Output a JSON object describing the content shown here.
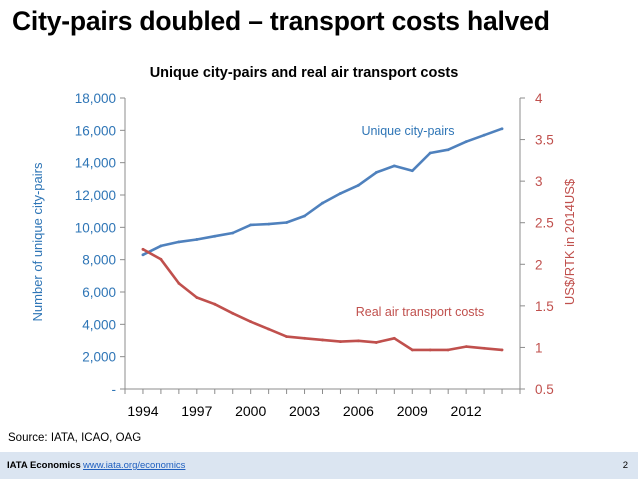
{
  "slide": {
    "title": "City-pairs doubled – transport costs halved",
    "source": "Source: IATA, ICAO, OAG"
  },
  "footer": {
    "org": "IATA Economics",
    "link": "www.iata.org/economics",
    "page": "2"
  },
  "colors": {
    "primary": "#2e75b6",
    "secondary": "#c0504d"
  },
  "chart_data": {
    "type": "line",
    "title": "Unique city-pairs and real air transport costs",
    "xlabel": "",
    "x_ticks": [
      "1994",
      "1997",
      "2000",
      "2003",
      "2006",
      "2009",
      "2012"
    ],
    "xlim": [
      1993,
      2015
    ],
    "y_left": {
      "label": "Number of unique city-pairs",
      "ylim": [
        0,
        18000
      ],
      "ticks": [
        {
          "value": 0,
          "label": "-"
        },
        {
          "value": 2000,
          "label": "2,000"
        },
        {
          "value": 4000,
          "label": "4,000"
        },
        {
          "value": 6000,
          "label": "6,000"
        },
        {
          "value": 8000,
          "label": "8,000"
        },
        {
          "value": 10000,
          "label": "10,000"
        },
        {
          "value": 12000,
          "label": "12,000"
        },
        {
          "value": 14000,
          "label": "14,000"
        },
        {
          "value": 16000,
          "label": "16,000"
        },
        {
          "value": 18000,
          "label": "18,000"
        }
      ]
    },
    "y_right": {
      "label": "US$/RTK in 2014US$",
      "ylim": [
        0.5,
        4
      ],
      "ticks": [
        {
          "value": 0.5,
          "label": "0.5"
        },
        {
          "value": 1,
          "label": "1"
        },
        {
          "value": 1.5,
          "label": "1.5"
        },
        {
          "value": 2,
          "label": "2"
        },
        {
          "value": 2.5,
          "label": "2.5"
        },
        {
          "value": 3,
          "label": "3"
        },
        {
          "value": 3.5,
          "label": "3.5"
        },
        {
          "value": 4,
          "label": "4"
        }
      ]
    },
    "series": [
      {
        "name": "Unique city-pairs",
        "axis": "left",
        "color": "#4f81bd",
        "label_color": "#2e75b6",
        "x": [
          1994,
          1995,
          1996,
          1997,
          1998,
          1999,
          2000,
          2001,
          2002,
          2003,
          2004,
          2005,
          2006,
          2007,
          2008,
          2009,
          2010,
          2011,
          2012,
          2013,
          2014
        ],
        "values": [
          8300,
          8850,
          9100,
          9250,
          9450,
          9650,
          10150,
          10200,
          10300,
          10700,
          11500,
          12100,
          12600,
          13400,
          13800,
          13500,
          14600,
          14800,
          15300,
          15700,
          16100
        ]
      },
      {
        "name": "Real air transport costs",
        "axis": "right",
        "color": "#c0504d",
        "label_color": "#c0504d",
        "x": [
          1994,
          1995,
          1996,
          1997,
          1998,
          1999,
          2000,
          2001,
          2002,
          2003,
          2004,
          2005,
          2006,
          2007,
          2008,
          2009,
          2010,
          2011,
          2012,
          2013,
          2014
        ],
        "values": [
          2.18,
          2.06,
          1.77,
          1.6,
          1.52,
          1.41,
          1.31,
          1.22,
          1.13,
          1.11,
          1.09,
          1.07,
          1.08,
          1.06,
          1.11,
          0.97,
          0.97,
          0.97,
          1.01,
          0.99,
          0.97
        ]
      }
    ]
  }
}
